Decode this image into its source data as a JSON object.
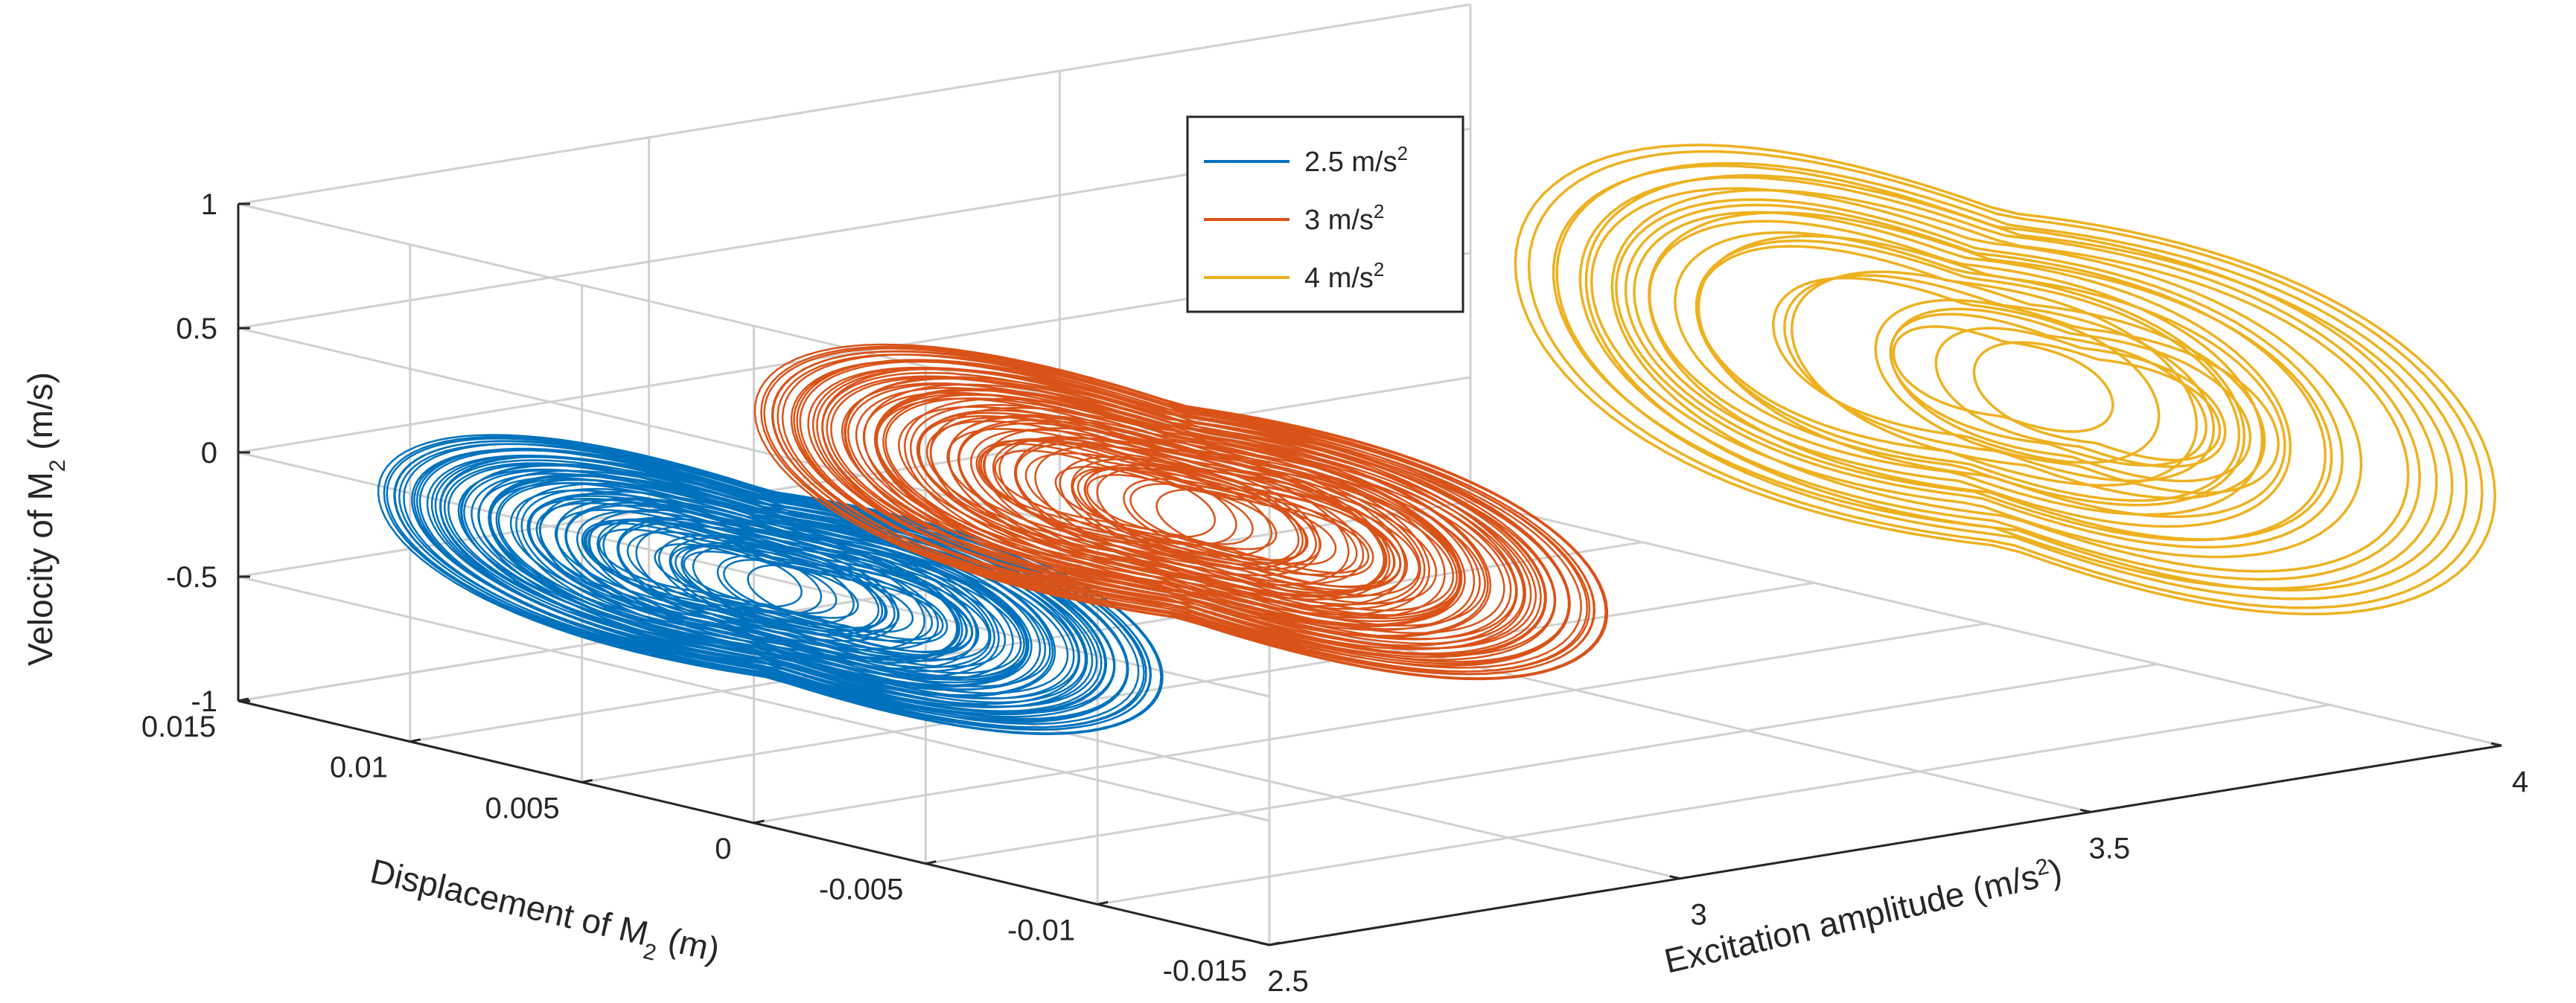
{
  "chart_data": {
    "type": "line3d",
    "title": "",
    "xlabel": "Excitation amplitude",
    "xlabel_unit": "(m/s",
    "xlabel_sup": "2",
    "xlabel_close": ")",
    "ylabel_main": "Displacement of M",
    "ylabel_sub": "2",
    "ylabel_unit": " (m)",
    "zlabel_main": "Velocity of M",
    "zlabel_sub": "2",
    "zlabel_unit": " (m/s)",
    "xlim": [
      2.5,
      4
    ],
    "ylim": [
      -0.015,
      0.015
    ],
    "zlim": [
      -1,
      1
    ],
    "x_ticks": [
      "2.5",
      "3",
      "3.5",
      "4"
    ],
    "y_ticks": [
      "0.015",
      "0.01",
      "0.005",
      "0",
      "-0.005",
      "-0.01",
      "-0.015"
    ],
    "z_ticks": [
      "1",
      "0.5",
      "0",
      "-0.5",
      "-1"
    ],
    "grid": true,
    "legend_position": "top-center",
    "series": [
      {
        "name": "2.5 m/s",
        "sup": "2",
        "x": 2.5,
        "color": "#0072BD",
        "displacement_range": [
          -0.012,
          0.011
        ],
        "velocity_range": [
          -0.55,
          0.5
        ]
      },
      {
        "name": "3 m/s",
        "sup": "2",
        "x": 3,
        "color": "#D95319",
        "displacement_range": [
          -0.013,
          0.012
        ],
        "velocity_range": [
          -0.6,
          0.6
        ]
      },
      {
        "name": "4 m/s",
        "sup": "2",
        "x": 4,
        "color": "#EDB120",
        "displacement_range": [
          -0.015,
          0.014
        ],
        "velocity_range": [
          -0.95,
          0.95
        ]
      }
    ]
  }
}
